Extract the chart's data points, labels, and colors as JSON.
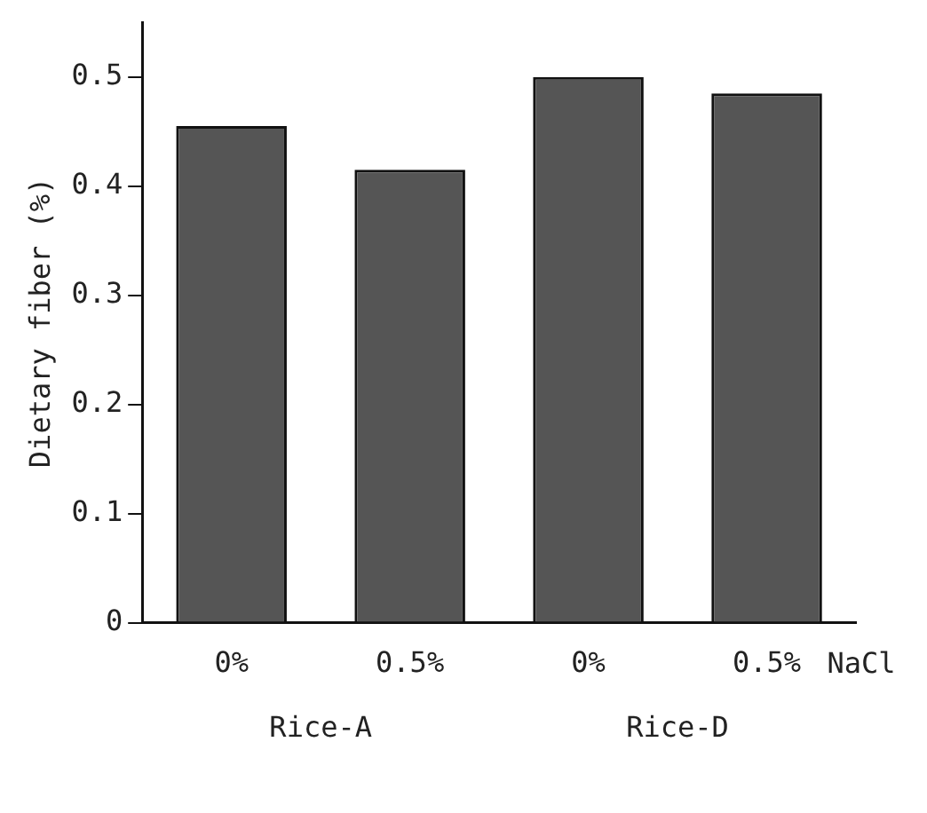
{
  "chart_data": {
    "type": "bar",
    "ylabel": "Dietary fiber (%)",
    "xlabel": "NaCl",
    "categories": [
      "0%",
      "0.5%",
      "0%",
      "0.5%"
    ],
    "values": [
      0.455,
      0.415,
      0.5,
      0.485
    ],
    "color": "#555555",
    "ylim": [
      0,
      0.55
    ],
    "yticks": [
      0,
      0.1,
      0.2,
      0.3,
      0.4,
      0.5
    ],
    "annotations": [
      "Rice-A",
      "Rice-D"
    ],
    "grid": false,
    "legend": false
  }
}
